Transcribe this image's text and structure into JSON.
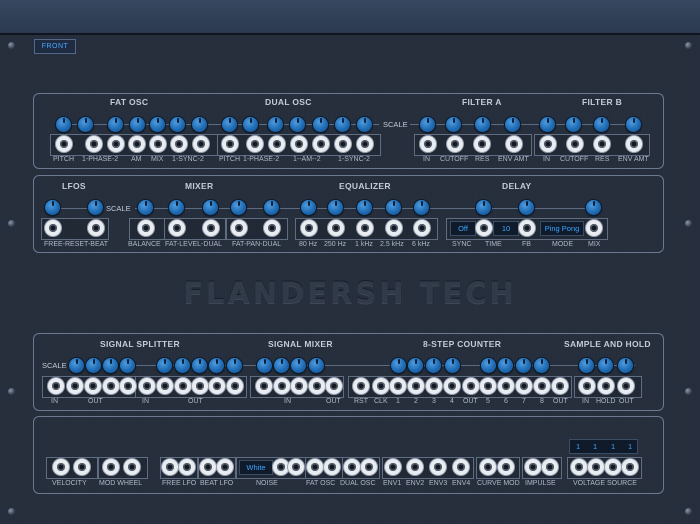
{
  "header": {
    "front_label": "FRONT"
  },
  "colors": {
    "knob": "#1f6bb3",
    "display_text": "#3aa6ff",
    "panel_border": "#6c7990",
    "background": "#252e3c"
  },
  "brand": {
    "name": "FLANDERSH TECH"
  },
  "row1": {
    "fat_osc": {
      "title": "FAT OSC",
      "labels": [
        "PITCH",
        "1-PHASE-2",
        "AM",
        "MIX",
        "1-SYNC-2"
      ]
    },
    "dual_osc": {
      "title": "DUAL OSC",
      "labels": [
        "PITCH",
        "1-PHASE-2",
        "1--AM--2",
        "1-SYNC-2"
      ]
    },
    "scale": "SCALE",
    "filter_a": {
      "title": "FILTER A",
      "labels": [
        "IN",
        "CUTOFF",
        "RES",
        "ENV AMT"
      ]
    },
    "filter_b": {
      "title": "FILTER B",
      "labels": [
        "IN",
        "CUTOFF",
        "RES",
        "ENV AMT"
      ]
    }
  },
  "row2": {
    "lfos": {
      "title": "LFOS",
      "labels": [
        "FREE-RESET-BEAT"
      ]
    },
    "scale": "SCALE",
    "mixer": {
      "title": "MIXER",
      "labels": [
        "BALANCE",
        "FAT-LEVEL-DUAL",
        "FAT-PAN-DUAL"
      ]
    },
    "equalizer": {
      "title": "EQUALIZER",
      "labels": [
        "80 Hz",
        "250 Hz",
        "1 kHz",
        "2.5 kHz",
        "6 kHz"
      ]
    },
    "delay": {
      "title": "DELAY",
      "sync_value": "Off",
      "time_value": "10",
      "mode_value": "Ping Pong",
      "labels": [
        "SYNC",
        "TIME",
        "FB",
        "MODE",
        "MIX"
      ]
    }
  },
  "row3": {
    "scale": "SCALE",
    "signal_splitter": {
      "title": "SIGNAL SPLITTER",
      "labels": [
        "IN",
        "OUT",
        "IN",
        "OUT"
      ]
    },
    "signal_mixer": {
      "title": "SIGNAL MIXER",
      "labels": [
        "IN",
        "OUT"
      ]
    },
    "step_counter": {
      "title": "8-STEP COUNTER",
      "labels": [
        "RST",
        "CLK",
        "1",
        "2",
        "3",
        "4",
        "OUT",
        "5",
        "6",
        "7",
        "8",
        "OUT"
      ]
    },
    "sample_hold": {
      "title": "SAMPLE AND HOLD",
      "labels": [
        "IN",
        "HOLD",
        "OUT"
      ]
    }
  },
  "row4": {
    "labels": [
      "VELOCITY",
      "MOD WHEEL",
      "FREE LFO",
      "BEAT LFO",
      "NOISE",
      "FAT OSC",
      "DUAL OSC",
      "ENV1",
      "ENV2",
      "ENV3",
      "ENV4",
      "CURVE MOD",
      "IMPULSE",
      "VOLTAGE SOURCE"
    ],
    "noise_type": "White",
    "voltage_values": [
      "1",
      "1",
      "1",
      "1"
    ]
  }
}
